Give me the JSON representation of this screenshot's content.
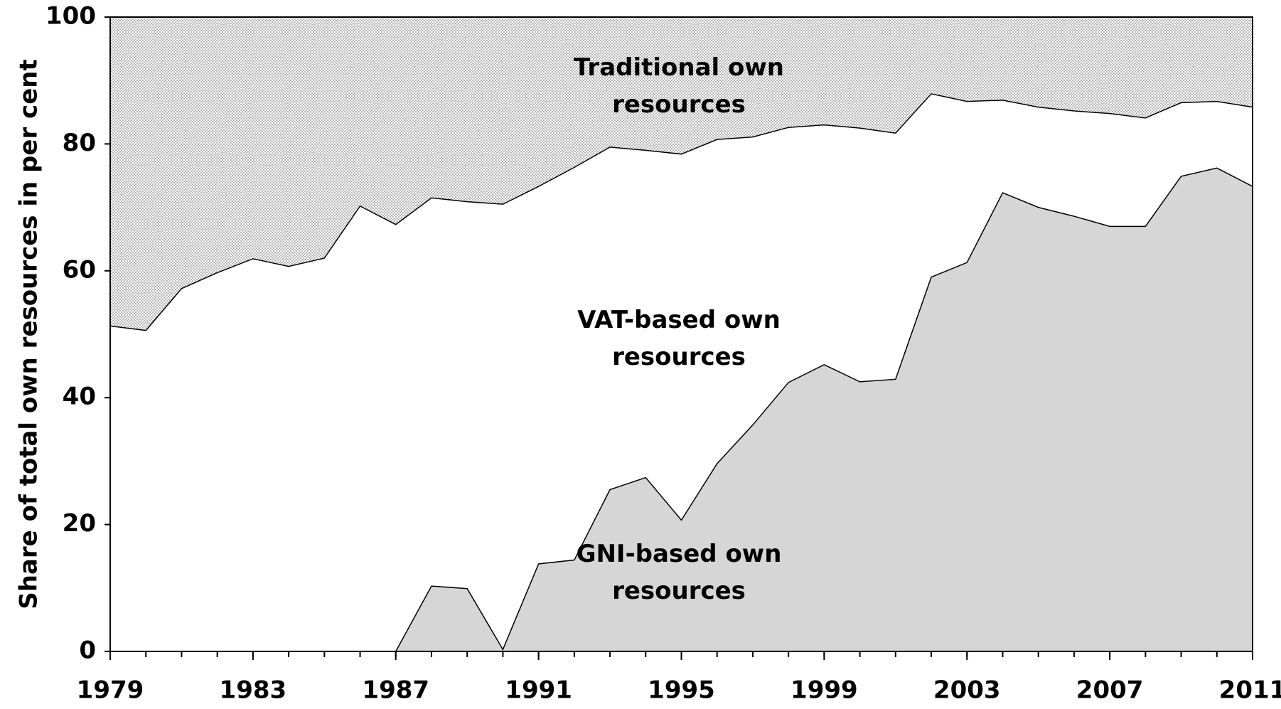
{
  "chart_data": {
    "type": "stacked-area",
    "y_label": "Share of total own resources in per cent",
    "x": [
      1979,
      1980,
      1981,
      1982,
      1983,
      1984,
      1985,
      1986,
      1987,
      1988,
      1989,
      1990,
      1991,
      1992,
      1993,
      1994,
      1995,
      1996,
      1997,
      1998,
      1999,
      2000,
      2001,
      2002,
      2003,
      2004,
      2005,
      2006,
      2007,
      2008,
      2009,
      2010,
      2011
    ],
    "series": [
      {
        "name": "GNI-based own resources",
        "color": "#d6d6d6",
        "values": [
          0,
          0,
          0,
          0,
          0,
          0,
          0,
          0,
          0,
          10.3,
          9.9,
          0.3,
          13.8,
          14.4,
          25.5,
          27.4,
          20.7,
          29.6,
          35.7,
          42.4,
          45.2,
          42.5,
          42.9,
          59.0,
          61.3,
          72.3,
          70.0,
          68.6,
          67.0,
          67.0,
          74.9,
          76.2,
          73.3
        ]
      },
      {
        "name": "VAT-based own resources",
        "color": "#ffffff",
        "values": [
          51.3,
          50.6,
          57.2,
          59.7,
          61.9,
          60.7,
          62.0,
          70.2,
          67.3,
          61.2,
          61.0,
          70.2,
          59.5,
          61.9,
          54.0,
          51.6,
          57.7,
          51.1,
          45.4,
          40.2,
          37.8,
          40.0,
          38.8,
          28.9,
          25.4,
          14.6,
          15.8,
          16.6,
          17.8,
          17.1,
          11.6,
          10.5,
          12.5
        ]
      },
      {
        "name": "Traditional own resources",
        "color": "#e8e8e8",
        "values": [
          48.7,
          49.4,
          42.8,
          40.3,
          38.1,
          39.3,
          38.0,
          29.8,
          32.7,
          28.5,
          29.1,
          29.5,
          26.7,
          23.7,
          20.5,
          21.0,
          21.6,
          19.3,
          18.9,
          17.4,
          17.0,
          17.5,
          18.3,
          12.1,
          13.3,
          13.1,
          14.2,
          14.8,
          15.2,
          15.9,
          13.5,
          13.3,
          14.2
        ]
      }
    ],
    "xlim": [
      1979,
      2011
    ],
    "xticks": [
      1979,
      1983,
      1987,
      1991,
      1995,
      1999,
      2003,
      2007,
      2011
    ],
    "ylim": [
      0,
      100
    ],
    "yticks": [
      0,
      20,
      40,
      60,
      80,
      100
    ],
    "grid": false
  }
}
